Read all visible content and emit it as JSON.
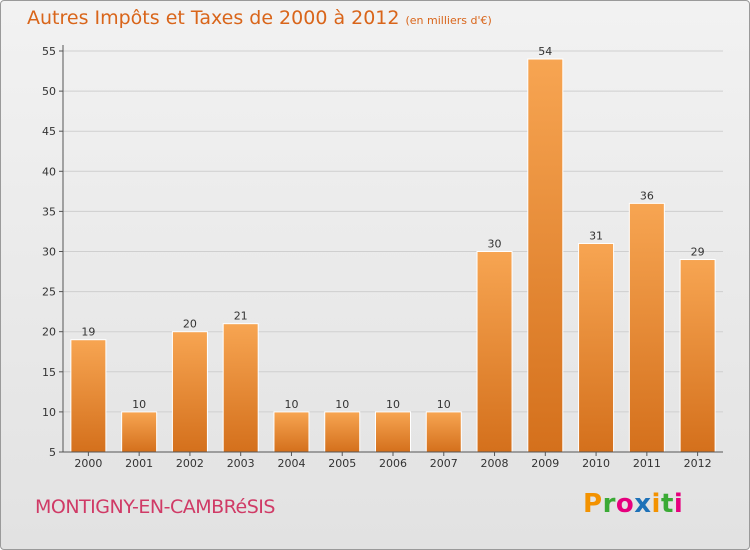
{
  "title": "Autres Impôts et Taxes de 2000 à 2012",
  "subtitle": "(en milliers d'€)",
  "place": "MONTIGNY-EN-CAMBRéSIS",
  "logo": {
    "text": "Proxiti",
    "colors": [
      "#f39200",
      "#3aaa35",
      "#e6007e",
      "#1d71b8",
      "#f39200",
      "#3aaa35",
      "#e6007e"
    ]
  },
  "colors": {
    "accent": "#d9651a",
    "place": "#d03a66",
    "bar_light": "#f7a552",
    "bar_dark": "#d4701c"
  },
  "chart_data": {
    "type": "bar",
    "categories": [
      "2000",
      "2001",
      "2002",
      "2003",
      "2004",
      "2005",
      "2006",
      "2007",
      "2008",
      "2009",
      "2010",
      "2011",
      "2012"
    ],
    "values": [
      19,
      10,
      20,
      21,
      10,
      10,
      10,
      10,
      30,
      54,
      31,
      36,
      29
    ],
    "ylim": [
      5,
      55
    ],
    "yticks": [
      5,
      10,
      15,
      20,
      25,
      30,
      35,
      40,
      45,
      50,
      55
    ],
    "grid": true,
    "title": "Autres Impôts et Taxes de 2000 à 2012",
    "xlabel": "",
    "ylabel": ""
  }
}
